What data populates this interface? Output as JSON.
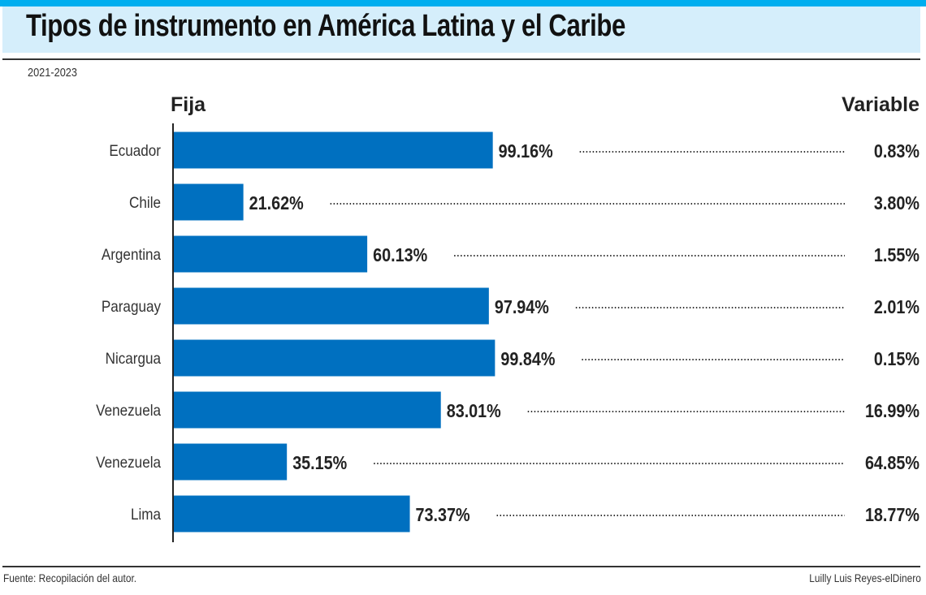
{
  "title": "Tipos de instrumento en América Latina y el Caribe",
  "period": "2021-2023",
  "source": "Fuente: Recopilación del autor.",
  "credit": "Luilly Luis Reyes-elDinero",
  "colors": {
    "bar": "#0070c0",
    "top_bar": "#00aeef",
    "header_bg": "#d5eefb"
  },
  "chart_data": {
    "type": "bar",
    "orientation": "horizontal",
    "title": "Tipos de instrumento en América Latina y el Caribe",
    "left_header": "Fija",
    "right_header": "Variable",
    "categories": [
      "Ecuador",
      "Chile",
      "Argentina",
      "Paraguay",
      "Nicargua",
      "Venezuela",
      "Venezuela",
      "Lima"
    ],
    "series": [
      {
        "name": "Fija",
        "values": [
          99.16,
          21.62,
          60.13,
          97.94,
          99.84,
          83.01,
          35.15,
          73.37
        ],
        "labels": [
          "99.16%",
          "21.62%",
          "60.13%",
          "97.94%",
          "99.84%",
          "83.01%",
          "35.15%",
          "73.37%"
        ]
      },
      {
        "name": "Variable",
        "values": [
          0.83,
          3.8,
          1.55,
          2.01,
          0.15,
          16.99,
          64.85,
          18.77
        ],
        "labels": [
          "0.83%",
          "3.80%",
          "1.55%",
          "2.01%",
          "0.15%",
          "16.99%",
          "64.85%",
          "18.77%"
        ]
      }
    ],
    "xlim": [
      0,
      100
    ],
    "grid": false,
    "legend": "none"
  }
}
